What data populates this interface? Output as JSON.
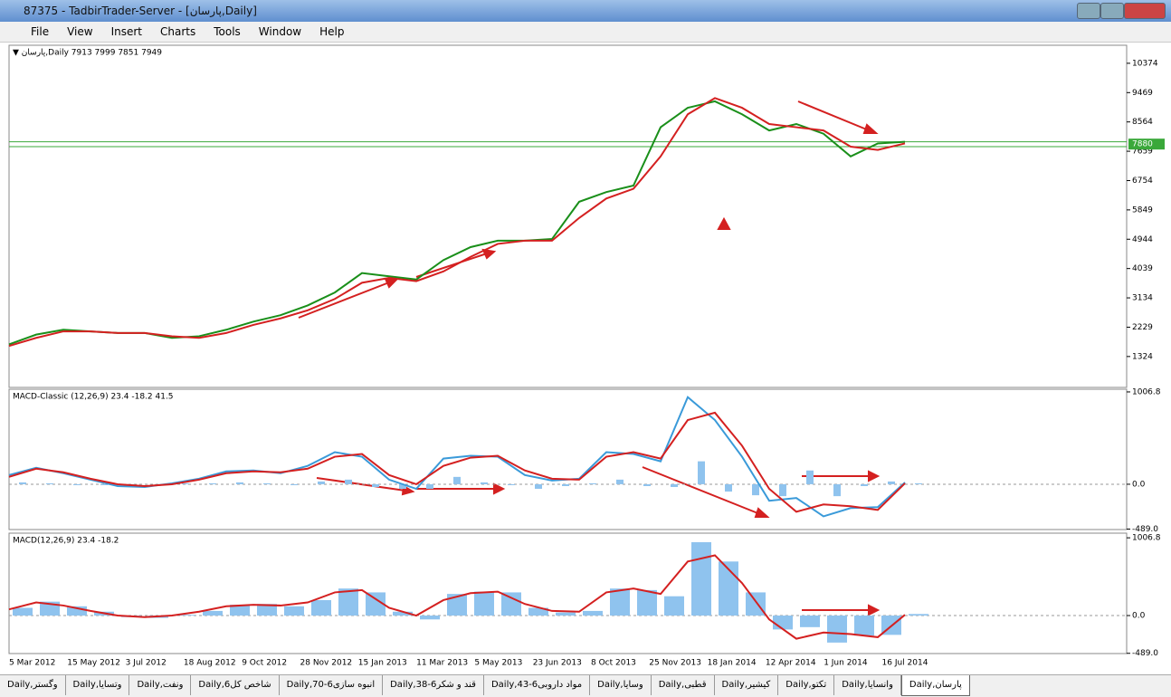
{
  "window": {
    "title": "87375 - TadbirTrader-Server - [پارسان,Daily]"
  },
  "menu": [
    "File",
    "View",
    "Insert",
    "Charts",
    "Tools",
    "Window",
    "Help"
  ],
  "chart_data": [
    {
      "type": "line",
      "header": "▼ پارسان,Daily  7913 7999 7851 7949",
      "ylim": [
        370,
        10930
      ],
      "yticks": [
        10374,
        9469,
        8564,
        7659,
        6754,
        5849,
        4944,
        4039,
        3134,
        2229,
        1324
      ],
      "hlines": [
        7950,
        7800
      ],
      "price_label": 7880,
      "series": [
        {
          "color": "#1a8f1a",
          "values": [
            1700,
            2000,
            2150,
            2100,
            2050,
            2050,
            1900,
            1950,
            2150,
            2400,
            2600,
            2900,
            3300,
            3900,
            3800,
            3700,
            4300,
            4700,
            4900,
            4900,
            4950,
            6100,
            6400,
            6600,
            8400,
            9000,
            9200,
            8800,
            8300,
            8500,
            8200,
            7500,
            7900,
            7950
          ]
        },
        {
          "color": "#d42020",
          "values": [
            1650,
            1900,
            2100,
            2100,
            2050,
            2050,
            1950,
            1900,
            2050,
            2300,
            2500,
            2750,
            3100,
            3600,
            3750,
            3650,
            3950,
            4400,
            4800,
            4900,
            4900,
            5600,
            6200,
            6500,
            7500,
            8800,
            9300,
            9000,
            8500,
            8400,
            8300,
            7800,
            7700,
            7900
          ]
        }
      ]
    },
    {
      "type": "macd-classic",
      "header": "MACD-Classic (12,26,9) 23.4 -18.2 41.5",
      "ylim": [
        -494,
        1036
      ],
      "yticks": [
        {
          "value": 1006.8,
          "label": "1006.8"
        },
        {
          "value": 0,
          "label": "0.0"
        },
        {
          "value": -489,
          "label": "-489.0"
        }
      ],
      "histogram": [
        20,
        10,
        -10,
        -10,
        -20,
        -10,
        10,
        10,
        20,
        10,
        -10,
        30,
        50,
        -30,
        -50,
        -50,
        80,
        20,
        -10,
        -50,
        -20,
        10,
        50,
        -20,
        -30,
        250,
        -80,
        -120,
        -130,
        150,
        -130,
        -20,
        30,
        10
      ],
      "series": [
        {
          "color": "#3a9ad9",
          "values": [
            100,
            180,
            120,
            50,
            -20,
            -30,
            10,
            60,
            140,
            150,
            120,
            200,
            350,
            300,
            50,
            -50,
            280,
            310,
            300,
            100,
            40,
            60,
            350,
            330,
            250,
            950,
            700,
            300,
            -180,
            -150,
            -350,
            -260,
            -250,
            20
          ]
        },
        {
          "color": "#d42020",
          "values": [
            80,
            170,
            130,
            60,
            0,
            -20,
            0,
            50,
            120,
            140,
            130,
            170,
            300,
            330,
            100,
            0,
            200,
            290,
            310,
            150,
            60,
            50,
            300,
            350,
            280,
            700,
            780,
            420,
            -50,
            -300,
            -220,
            -240,
            -280,
            10
          ]
        }
      ]
    },
    {
      "type": "macd",
      "header": "MACD(12,26,9) 23.4 -18.2",
      "ylim": [
        -492,
        1067
      ],
      "yticks": [
        {
          "value": 1006.8,
          "label": "1006.8"
        },
        {
          "value": 0,
          "label": "0.0"
        },
        {
          "value": -489,
          "label": "-489.0"
        }
      ],
      "histogram": [
        100,
        180,
        120,
        50,
        -20,
        -30,
        10,
        60,
        140,
        150,
        120,
        200,
        350,
        300,
        50,
        -50,
        280,
        310,
        300,
        100,
        40,
        60,
        350,
        330,
        250,
        950,
        700,
        300,
        -180,
        -150,
        -350,
        -260,
        -250,
        20
      ],
      "series": [
        {
          "color": "#d42020",
          "values": [
            80,
            170,
            130,
            60,
            0,
            -20,
            0,
            50,
            120,
            140,
            130,
            170,
            300,
            330,
            100,
            0,
            200,
            290,
            310,
            150,
            60,
            50,
            300,
            350,
            280,
            700,
            780,
            420,
            -50,
            -300,
            -220,
            -240,
            -280,
            10
          ]
        }
      ]
    }
  ],
  "date_axis": [
    "5 Mar 2012",
    "15 May 2012",
    "3 Jul 2012",
    "18 Aug 2012",
    "9 Oct 2012",
    "28 Nov 2012",
    "15 Jan 2013",
    "11 Mar 2013",
    "5 May 2013",
    "23 Jun 2013",
    "8 Oct 2013",
    "25 Nov 2013",
    "18 Jan 2014",
    "12 Apr 2014",
    "1 Jun 2014",
    "16 Jul 2014"
  ],
  "tabs": [
    "Daily,وگستر",
    "Daily,وتسایا",
    "Daily,ونفت",
    "Daily,شاخص کل6",
    "Daily,انبوه سازی6-70",
    "Daily,قند و شکر6-38",
    "Daily,مواد داروبی6-43",
    "Daily,وسایا",
    "Daily,قطبی",
    "Daily,کیشیر",
    "Daily,تکتو",
    "Daily,وانسایا",
    "Daily,پارسان"
  ]
}
